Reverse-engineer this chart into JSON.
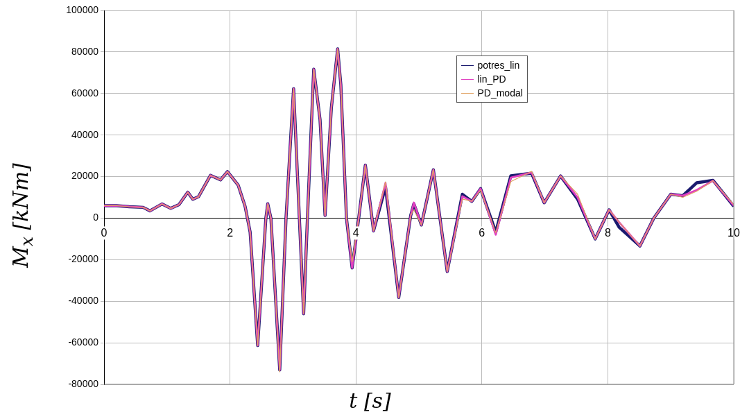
{
  "chart_data": {
    "type": "line",
    "xlabel": "t [s]",
    "ylabel": "M$_{x}$ [kNm]",
    "x": [
      0,
      0.2,
      0.4,
      0.62,
      0.73,
      0.92,
      1.06,
      1.19,
      1.33,
      1.41,
      1.5,
      1.69,
      1.85,
      1.96,
      2.13,
      2.24,
      2.32,
      2.44,
      2.57,
      2.6,
      2.65,
      2.79,
      2.89,
      3.01,
      3.17,
      3.23,
      3.33,
      3.43,
      3.51,
      3.61,
      3.71,
      3.76,
      3.85,
      3.94,
      4.04,
      4.15,
      4.28,
      4.47,
      4.68,
      4.87,
      4.92,
      5.04,
      5.23,
      5.45,
      5.69,
      5.84,
      5.98,
      6.22,
      6.46,
      6.79,
      6.99,
      7.25,
      7.52,
      7.8,
      8.02,
      8.18,
      8.51,
      8.73,
      9.0,
      9.19,
      9.41,
      9.67,
      10
    ],
    "series": [
      {
        "name": "potres_lin",
        "color": "#1a1a6e",
        "values": [
          6000,
          6000,
          5500,
          5200,
          3500,
          6800,
          4700,
          6500,
          12500,
          9100,
          10300,
          20600,
          18400,
          22400,
          15900,
          5700,
          -6700,
          -61300,
          0,
          6900,
          0,
          -73100,
          0,
          62300,
          -46000,
          0,
          71700,
          47500,
          1300,
          53100,
          81500,
          64400,
          0,
          -24000,
          -1000,
          25500,
          -6100,
          15000,
          -38200,
          1300,
          6900,
          -3300,
          23300,
          -25700,
          11500,
          8100,
          14200,
          -6700,
          20400,
          21600,
          7400,
          20300,
          9100,
          -10000,
          4000,
          -4400,
          -13400,
          0,
          11500,
          10800,
          17000,
          18200,
          5700
        ]
      },
      {
        "name": "lin_PD",
        "color": "#e040c0",
        "values": [
          6000,
          6000,
          5500,
          5200,
          3500,
          6800,
          4700,
          6500,
          12500,
          9100,
          10300,
          20600,
          18400,
          22400,
          15900,
          5700,
          -6700,
          -61300,
          0,
          6900,
          0,
          -73100,
          0,
          62300,
          -46000,
          0,
          71700,
          47500,
          1300,
          53100,
          81500,
          64400,
          0,
          -24000,
          -1000,
          25500,
          -6100,
          17000,
          -38200,
          1300,
          7500,
          -3300,
          23300,
          -25700,
          10500,
          8100,
          14200,
          -8000,
          19500,
          22000,
          7400,
          20300,
          10000,
          -10000,
          4000,
          -2000,
          -13400,
          0,
          11500,
          10800,
          13500,
          18000,
          6000
        ]
      },
      {
        "name": "PD_modal",
        "color": "#e0a060",
        "values": [
          6000,
          6000,
          5500,
          5200,
          3500,
          6800,
          4700,
          6500,
          12500,
          9100,
          10300,
          20600,
          18400,
          22400,
          15900,
          5700,
          -6700,
          -61300,
          0,
          6900,
          0,
          -74000,
          0,
          62300,
          -46000,
          0,
          71700,
          47500,
          1300,
          53100,
          81500,
          64400,
          0,
          -21000,
          -1000,
          25500,
          -6100,
          17500,
          -38200,
          1300,
          4000,
          -3300,
          23300,
          -25700,
          9200,
          8100,
          13500,
          -7000,
          17600,
          22500,
          7400,
          20300,
          11500,
          -10000,
          4000,
          -2000,
          -13400,
          0,
          11500,
          10000,
          12900,
          18000,
          6500
        ]
      }
    ],
    "xlim": [
      0,
      10
    ],
    "xticks": [
      0,
      2,
      4,
      6,
      8,
      10
    ],
    "ylim": [
      -80000,
      100000
    ],
    "yticks": [
      -80000,
      -60000,
      -40000,
      -20000,
      0,
      20000,
      40000,
      60000,
      80000,
      100000
    ],
    "grid": true,
    "legend": "top right",
    "marker": "none",
    "line_style": "solid"
  }
}
